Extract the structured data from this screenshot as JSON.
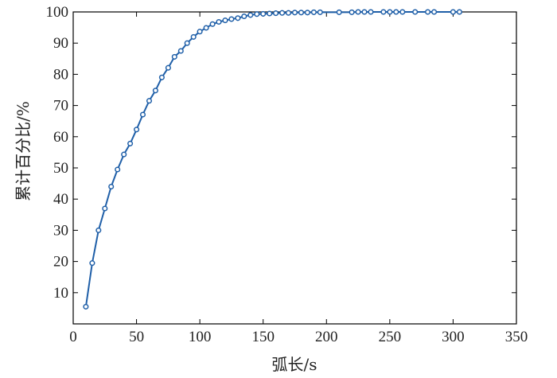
{
  "chart_data": {
    "type": "line",
    "xlabel": "弧长/s",
    "ylabel": "累计百分比/%",
    "xlim": [
      0,
      350
    ],
    "ylim": [
      0,
      100
    ],
    "xticks": [
      0,
      50,
      100,
      150,
      200,
      250,
      300,
      350
    ],
    "yticks": [
      10,
      20,
      30,
      40,
      50,
      60,
      70,
      80,
      90,
      100
    ],
    "grid": false,
    "legend": "none",
    "line_color": "#1f5fa8",
    "marker": "open-circle",
    "series": [
      {
        "x": [
          10,
          15,
          20,
          25,
          30,
          35,
          40,
          45,
          50,
          55,
          60,
          65,
          70,
          75,
          80,
          85,
          90,
          95,
          100,
          105,
          110,
          115,
          120,
          125,
          130,
          135,
          140,
          145,
          150,
          155,
          160,
          165,
          170,
          175,
          180,
          185,
          190,
          195,
          210,
          220,
          225,
          230,
          235,
          245,
          250,
          255,
          260,
          270,
          280,
          285,
          300,
          305
        ],
        "y": [
          5.5,
          19.5,
          30,
          37,
          44,
          49.5,
          54.3,
          57.8,
          62.3,
          67.1,
          71.5,
          74.8,
          79,
          82.1,
          85.6,
          87.5,
          90,
          92,
          93.7,
          94.9,
          96.1,
          96.8,
          97.3,
          97.7,
          98,
          98.6,
          99,
          99.3,
          99.4,
          99.5,
          99.6,
          99.7,
          99.7,
          99.8,
          99.8,
          99.8,
          99.9,
          99.9,
          99.9,
          99.9,
          100,
          100,
          100,
          100,
          100,
          100,
          100,
          100,
          100,
          100,
          100,
          100
        ]
      }
    ]
  }
}
